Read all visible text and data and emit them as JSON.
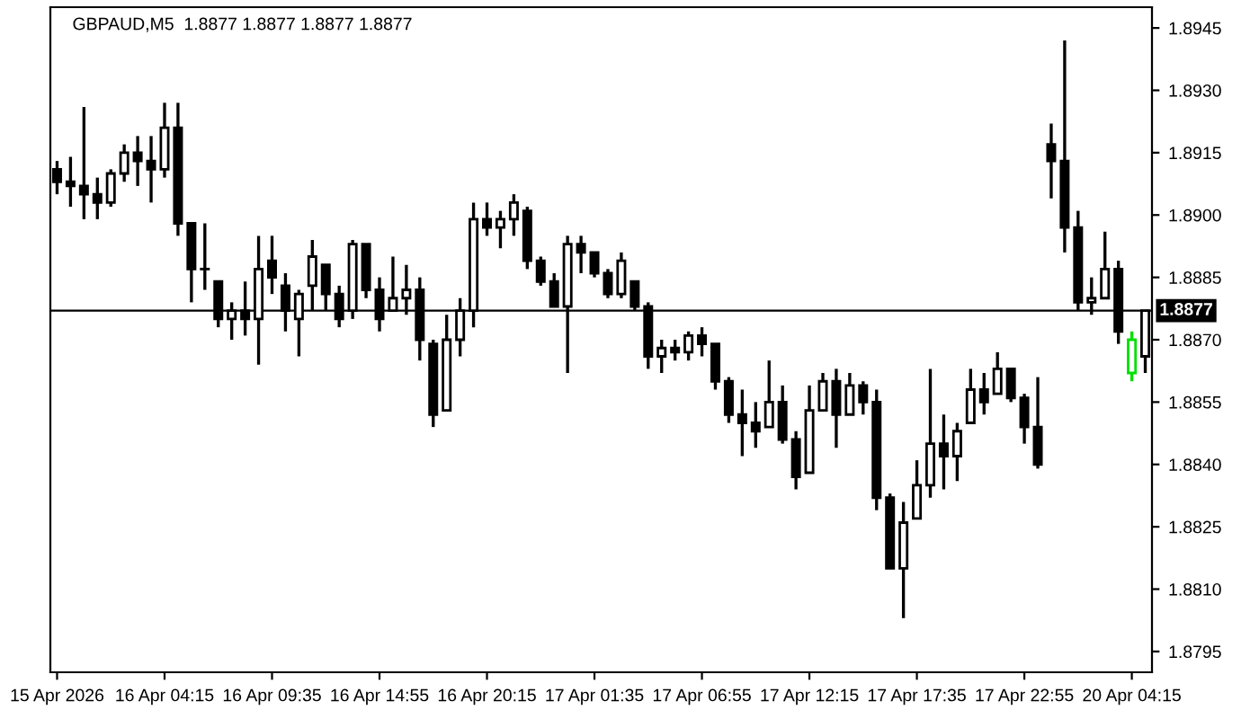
{
  "chart_data": {
    "type": "candlestick",
    "title": "GBPAUD,M5  1.8877 1.8877 1.8877 1.8877",
    "categories": [
      "15 Apr 2026",
      null,
      null,
      null,
      null,
      null,
      null,
      null,
      "16 Apr 04:15",
      null,
      null,
      null,
      null,
      null,
      null,
      null,
      "16 Apr 09:35",
      null,
      null,
      null,
      null,
      null,
      null,
      null,
      "16 Apr 14:55",
      null,
      null,
      null,
      null,
      null,
      null,
      null,
      "16 Apr 20:15",
      null,
      null,
      null,
      null,
      null,
      null,
      null,
      "17 Apr 01:35",
      null,
      null,
      null,
      null,
      null,
      null,
      null,
      "17 Apr 06:55",
      null,
      null,
      null,
      null,
      null,
      null,
      null,
      "17 Apr 12:15",
      null,
      null,
      null,
      null,
      null,
      null,
      null,
      "17 Apr 17:35",
      null,
      null,
      null,
      null,
      null,
      null,
      null,
      "17 Apr 22:55",
      null,
      null,
      null,
      null,
      null,
      null,
      null,
      "20 Apr 04:15",
      null
    ],
    "ohlc": [
      [
        1.8911,
        1.8913,
        1.8905,
        1.8908
      ],
      [
        1.8908,
        1.8914,
        1.8902,
        1.8907
      ],
      [
        1.8907,
        1.8926,
        1.8899,
        1.8905
      ],
      [
        1.8905,
        1.8909,
        1.8899,
        1.8903
      ],
      [
        1.8903,
        1.8911,
        1.8902,
        1.891
      ],
      [
        1.891,
        1.8917,
        1.8908,
        1.8915
      ],
      [
        1.8915,
        1.8919,
        1.8907,
        1.8913
      ],
      [
        1.8913,
        1.8919,
        1.8903,
        1.8911
      ],
      [
        1.8911,
        1.8927,
        1.8909,
        1.8921
      ],
      [
        1.8921,
        1.8927,
        1.8895,
        1.8898
      ],
      [
        1.8898,
        1.8898,
        1.8879,
        1.8887
      ],
      [
        1.8887,
        1.8898,
        1.8882,
        1.8887
      ],
      [
        1.8884,
        1.8884,
        1.8873,
        1.8875
      ],
      [
        1.8875,
        1.8879,
        1.887,
        1.8877
      ],
      [
        1.8877,
        1.8884,
        1.8871,
        1.8875
      ],
      [
        1.8875,
        1.8895,
        1.8864,
        1.8887
      ],
      [
        1.8889,
        1.8895,
        1.8881,
        1.8885
      ],
      [
        1.8883,
        1.8886,
        1.8872,
        1.8877
      ],
      [
        1.8875,
        1.8882,
        1.8866,
        1.8881
      ],
      [
        1.8883,
        1.8894,
        1.8877,
        1.889
      ],
      [
        1.8888,
        1.8888,
        1.8877,
        1.8881
      ],
      [
        1.8881,
        1.8883,
        1.8873,
        1.8875
      ],
      [
        1.8877,
        1.8894,
        1.8875,
        1.8893
      ],
      [
        1.8893,
        1.8893,
        1.888,
        1.8882
      ],
      [
        1.8882,
        1.8885,
        1.8872,
        1.8875
      ],
      [
        1.8877,
        1.889,
        1.8877,
        1.888
      ],
      [
        1.888,
        1.8888,
        1.8876,
        1.8882
      ],
      [
        1.8882,
        1.8885,
        1.8865,
        1.887
      ],
      [
        1.8869,
        1.887,
        1.8849,
        1.8852
      ],
      [
        1.8853,
        1.8876,
        1.8853,
        1.887
      ],
      [
        1.887,
        1.888,
        1.8866,
        1.8877
      ],
      [
        1.8877,
        1.8903,
        1.8873,
        1.8899
      ],
      [
        1.8899,
        1.8903,
        1.8895,
        1.8897
      ],
      [
        1.8897,
        1.8901,
        1.8892,
        1.8899
      ],
      [
        1.8899,
        1.8905,
        1.8895,
        1.8903
      ],
      [
        1.8901,
        1.8902,
        1.8887,
        1.8889
      ],
      [
        1.8889,
        1.889,
        1.8883,
        1.8884
      ],
      [
        1.8884,
        1.8886,
        1.8878,
        1.8878
      ],
      [
        1.8878,
        1.8895,
        1.8862,
        1.8893
      ],
      [
        1.8893,
        1.8895,
        1.8886,
        1.8891
      ],
      [
        1.8891,
        1.8891,
        1.8885,
        1.8886
      ],
      [
        1.8886,
        1.8887,
        1.888,
        1.8881
      ],
      [
        1.8881,
        1.8891,
        1.888,
        1.8889
      ],
      [
        1.8884,
        1.8884,
        1.8877,
        1.8878
      ],
      [
        1.8878,
        1.8879,
        1.8863,
        1.8866
      ],
      [
        1.8866,
        1.887,
        1.8862,
        1.8868
      ],
      [
        1.8868,
        1.887,
        1.8865,
        1.8867
      ],
      [
        1.8867,
        1.8872,
        1.8865,
        1.8871
      ],
      [
        1.8871,
        1.8873,
        1.8866,
        1.8869
      ],
      [
        1.8869,
        1.8869,
        1.8858,
        1.886
      ],
      [
        1.886,
        1.8861,
        1.885,
        1.8852
      ],
      [
        1.8852,
        1.8858,
        1.8842,
        1.885
      ],
      [
        1.885,
        1.8855,
        1.8844,
        1.8848
      ],
      [
        1.8849,
        1.8865,
        1.8849,
        1.8855
      ],
      [
        1.8855,
        1.8859,
        1.8845,
        1.8846
      ],
      [
        1.8846,
        1.8848,
        1.8834,
        1.8837
      ],
      [
        1.8838,
        1.8859,
        1.8838,
        1.8853
      ],
      [
        1.8853,
        1.8862,
        1.8853,
        1.886
      ],
      [
        1.886,
        1.8863,
        1.8844,
        1.8852
      ],
      [
        1.8852,
        1.8862,
        1.8852,
        1.8859
      ],
      [
        1.8859,
        1.886,
        1.8852,
        1.8855
      ],
      [
        1.8855,
        1.8858,
        1.8829,
        1.8832
      ],
      [
        1.8832,
        1.8833,
        1.8815,
        1.8815
      ],
      [
        1.8815,
        1.8831,
        1.8803,
        1.8826
      ],
      [
        1.8827,
        1.8841,
        1.8827,
        1.8835
      ],
      [
        1.8835,
        1.8863,
        1.8832,
        1.8845
      ],
      [
        1.8845,
        1.8852,
        1.8834,
        1.8842
      ],
      [
        1.8842,
        1.885,
        1.8836,
        1.8848
      ],
      [
        1.885,
        1.8863,
        1.885,
        1.8858
      ],
      [
        1.8858,
        1.8862,
        1.8852,
        1.8855
      ],
      [
        1.8857,
        1.8867,
        1.8857,
        1.8863
      ],
      [
        1.8863,
        1.8863,
        1.8855,
        1.8856
      ],
      [
        1.8856,
        1.8857,
        1.8845,
        1.8849
      ],
      [
        1.8849,
        1.8861,
        1.8839,
        1.884
      ],
      [
        1.8917,
        1.8922,
        1.8904,
        1.8913
      ],
      [
        1.8913,
        1.8942,
        1.8891,
        1.8897
      ],
      [
        1.8897,
        1.8901,
        1.8877,
        1.8879
      ],
      [
        1.8879,
        1.8885,
        1.8876,
        1.888
      ],
      [
        1.888,
        1.8896,
        1.888,
        1.8887
      ],
      [
        1.8887,
        1.8889,
        1.8869,
        1.8872
      ],
      [
        1.8862,
        1.8872,
        1.886,
        1.887
      ],
      [
        1.8866,
        1.8877,
        1.8862,
        1.8877
      ]
    ],
    "colors": [
      "#000000",
      "#000000",
      "#000000",
      "#000000",
      "#000000",
      "#000000",
      "#000000",
      "#000000",
      "#000000",
      "#000000",
      "#000000",
      "#000000",
      "#000000",
      "#000000",
      "#000000",
      "#000000",
      "#000000",
      "#000000",
      "#000000",
      "#000000",
      "#000000",
      "#000000",
      "#000000",
      "#000000",
      "#000000",
      "#000000",
      "#000000",
      "#000000",
      "#000000",
      "#000000",
      "#000000",
      "#000000",
      "#000000",
      "#000000",
      "#000000",
      "#000000",
      "#000000",
      "#000000",
      "#000000",
      "#000000",
      "#000000",
      "#000000",
      "#000000",
      "#000000",
      "#000000",
      "#000000",
      "#000000",
      "#000000",
      "#000000",
      "#000000",
      "#000000",
      "#000000",
      "#000000",
      "#000000",
      "#000000",
      "#000000",
      "#000000",
      "#000000",
      "#000000",
      "#000000",
      "#000000",
      "#000000",
      "#000000",
      "#000000",
      "#000000",
      "#000000",
      "#000000",
      "#000000",
      "#000000",
      "#000000",
      "#000000",
      "#000000",
      "#000000",
      "#000000",
      "#000000",
      "#000000",
      "#000000",
      "#000000",
      "#000000",
      "#000000",
      "#00e000",
      "#000000"
    ],
    "ylim": [
      1.879,
      1.895
    ],
    "yticks": [
      1.8945,
      {
        "value": 1.893,
        "label": "1.8930"
      },
      1.8915,
      {
        "value": 1.89,
        "label": "1.8900"
      },
      1.8885,
      {
        "value": 1.887,
        "label": "1.8870"
      },
      1.8855,
      {
        "value": 1.884,
        "label": "1.8840"
      },
      1.8825,
      {
        "value": 1.881,
        "label": "1.8810"
      },
      1.8795
    ],
    "ref_lines": [
      {
        "axis": "y",
        "value": 1.8877,
        "label": "1.8877",
        "color": "#000000"
      }
    ],
    "grid": false,
    "legend": false
  }
}
